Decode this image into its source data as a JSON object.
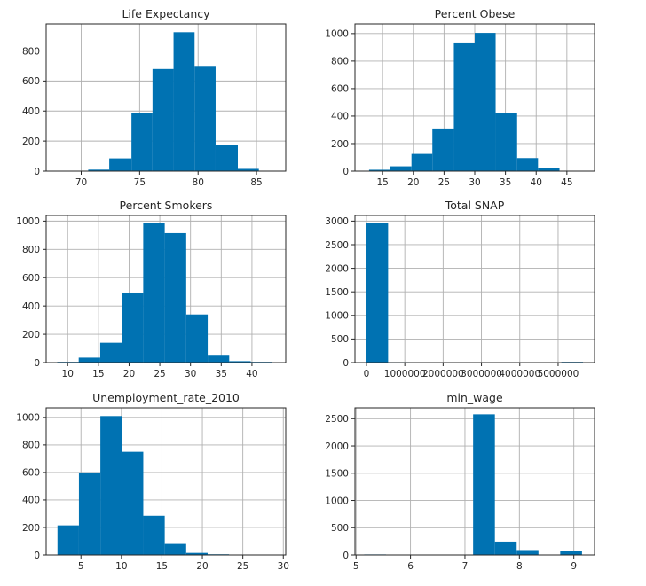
{
  "chart_data": [
    {
      "type": "bar",
      "title": "Life Expectancy",
      "xlim": [
        67.0,
        87.5
      ],
      "ylim": [
        0,
        980
      ],
      "xticks": [
        70,
        75,
        80,
        85
      ],
      "yticks": [
        0,
        200,
        400,
        600,
        800
      ],
      "bins": [
        {
          "x0": 68.8,
          "x1": 70.6,
          "value": 0
        },
        {
          "x0": 70.6,
          "x1": 72.4,
          "value": 10
        },
        {
          "x0": 72.4,
          "x1": 74.3,
          "value": 85
        },
        {
          "x0": 74.3,
          "x1": 76.1,
          "value": 385
        },
        {
          "x0": 76.1,
          "x1": 77.9,
          "value": 680
        },
        {
          "x0": 77.9,
          "x1": 79.7,
          "value": 925
        },
        {
          "x0": 79.7,
          "x1": 81.5,
          "value": 695
        },
        {
          "x0": 81.5,
          "x1": 83.4,
          "value": 175
        },
        {
          "x0": 83.4,
          "x1": 85.2,
          "value": 15
        },
        {
          "x0": 85.2,
          "x1": 87.0,
          "value": 0
        }
      ]
    },
    {
      "type": "bar",
      "title": "Percent Obese",
      "xlim": [
        10.5,
        49.5
      ],
      "ylim": [
        0,
        1070
      ],
      "xticks": [
        15,
        20,
        25,
        30,
        35,
        40,
        45
      ],
      "yticks": [
        0,
        200,
        400,
        600,
        800,
        1000
      ],
      "bins": [
        {
          "x0": 12.8,
          "x1": 16.2,
          "value": 10
        },
        {
          "x0": 16.2,
          "x1": 19.7,
          "value": 35
        },
        {
          "x0": 19.7,
          "x1": 23.1,
          "value": 125
        },
        {
          "x0": 23.1,
          "x1": 26.6,
          "value": 310
        },
        {
          "x0": 26.6,
          "x1": 30.0,
          "value": 935
        },
        {
          "x0": 30.0,
          "x1": 33.4,
          "value": 1005
        },
        {
          "x0": 33.4,
          "x1": 36.9,
          "value": 425
        },
        {
          "x0": 36.9,
          "x1": 40.3,
          "value": 95
        },
        {
          "x0": 40.3,
          "x1": 43.8,
          "value": 20
        },
        {
          "x0": 43.8,
          "x1": 47.2,
          "value": 0
        }
      ]
    },
    {
      "type": "bar",
      "title": "Percent Smokers",
      "xlim": [
        6.5,
        45.5
      ],
      "ylim": [
        0,
        1040
      ],
      "xticks": [
        10,
        15,
        20,
        25,
        30,
        35,
        40
      ],
      "yticks": [
        0,
        200,
        400,
        600,
        800,
        1000
      ],
      "bins": [
        {
          "x0": 8.3,
          "x1": 11.8,
          "value": 5
        },
        {
          "x0": 11.8,
          "x1": 15.3,
          "value": 35
        },
        {
          "x0": 15.3,
          "x1": 18.8,
          "value": 140
        },
        {
          "x0": 18.8,
          "x1": 22.3,
          "value": 495
        },
        {
          "x0": 22.3,
          "x1": 25.8,
          "value": 985
        },
        {
          "x0": 25.8,
          "x1": 29.3,
          "value": 915
        },
        {
          "x0": 29.3,
          "x1": 32.8,
          "value": 340
        },
        {
          "x0": 32.8,
          "x1": 36.3,
          "value": 55
        },
        {
          "x0": 36.3,
          "x1": 39.8,
          "value": 10
        },
        {
          "x0": 39.8,
          "x1": 43.3,
          "value": 5
        }
      ]
    },
    {
      "type": "bar",
      "title": "Total SNAP",
      "xlim": [
        -300000,
        5950000
      ],
      "ylim": [
        0,
        3120
      ],
      "xticks": [
        0,
        1000000,
        2000000,
        3000000,
        4000000,
        5000000
      ],
      "xtick_labels": [
        "0",
        "1000000",
        "2000000",
        "3000000",
        "4000000",
        "5000000"
      ],
      "yticks": [
        0,
        500,
        1000,
        1500,
        2000,
        2500,
        3000
      ],
      "bins": [
        {
          "x0": 0,
          "x1": 565000,
          "value": 2960
        },
        {
          "x0": 565000,
          "x1": 1130000,
          "value": 10
        },
        {
          "x0": 1130000,
          "x1": 1695000,
          "value": 8
        },
        {
          "x0": 1695000,
          "x1": 2260000,
          "value": 5
        },
        {
          "x0": 2260000,
          "x1": 2825000,
          "value": 0
        },
        {
          "x0": 2825000,
          "x1": 3390000,
          "value": 0
        },
        {
          "x0": 3390000,
          "x1": 3955000,
          "value": 0
        },
        {
          "x0": 3955000,
          "x1": 4520000,
          "value": 0
        },
        {
          "x0": 4520000,
          "x1": 5085000,
          "value": 0
        },
        {
          "x0": 5085000,
          "x1": 5650000,
          "value": 15
        }
      ]
    },
    {
      "type": "bar",
      "title": "Unemployment_rate_2010",
      "xlim": [
        0.7,
        30.3
      ],
      "ylim": [
        0,
        1070
      ],
      "xticks": [
        5,
        10,
        15,
        20,
        25,
        30
      ],
      "yticks": [
        0,
        200,
        400,
        600,
        800,
        1000
      ],
      "bins": [
        {
          "x0": 2.1,
          "x1": 4.75,
          "value": 215
        },
        {
          "x0": 4.75,
          "x1": 7.4,
          "value": 600
        },
        {
          "x0": 7.4,
          "x1": 10.05,
          "value": 1010
        },
        {
          "x0": 10.05,
          "x1": 12.7,
          "value": 750
        },
        {
          "x0": 12.7,
          "x1": 15.35,
          "value": 285
        },
        {
          "x0": 15.35,
          "x1": 18.0,
          "value": 80
        },
        {
          "x0": 18.0,
          "x1": 20.65,
          "value": 15
        },
        {
          "x0": 20.65,
          "x1": 23.3,
          "value": 5
        },
        {
          "x0": 23.3,
          "x1": 25.95,
          "value": 0
        },
        {
          "x0": 25.95,
          "x1": 28.6,
          "value": 0
        }
      ]
    },
    {
      "type": "bar",
      "title": "min_wage",
      "xlim": [
        4.98,
        9.38
      ],
      "ylim": [
        0,
        2700
      ],
      "xticks": [
        5,
        6,
        7,
        8,
        9
      ],
      "yticks": [
        0,
        500,
        1000,
        1500,
        2000,
        2500
      ],
      "bins": [
        {
          "x0": 5.15,
          "x1": 5.55,
          "value": 10
        },
        {
          "x0": 5.55,
          "x1": 5.95,
          "value": 0
        },
        {
          "x0": 5.95,
          "x1": 6.35,
          "value": 0
        },
        {
          "x0": 6.35,
          "x1": 6.75,
          "value": 0
        },
        {
          "x0": 6.75,
          "x1": 7.15,
          "value": 0
        },
        {
          "x0": 7.15,
          "x1": 7.55,
          "value": 2580
        },
        {
          "x0": 7.55,
          "x1": 7.95,
          "value": 245
        },
        {
          "x0": 7.95,
          "x1": 8.35,
          "value": 90
        },
        {
          "x0": 8.35,
          "x1": 8.75,
          "value": 0
        },
        {
          "x0": 8.75,
          "x1": 9.15,
          "value": 70
        }
      ]
    }
  ],
  "colors": {
    "bar": "#0072B2",
    "grid": "#b0b0b0",
    "axis": "#262626"
  }
}
